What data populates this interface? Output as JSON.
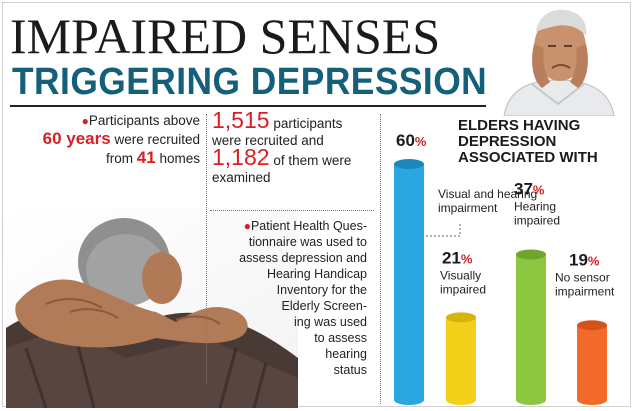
{
  "header": {
    "title": "IMPAIRED SENSES",
    "subtitle": "TRIGGERING DEPRESSION"
  },
  "facts": {
    "recruit_line_pre": "Participants above",
    "recruit_age": "60 years",
    "recruit_line_mid": "were recruited",
    "recruit_line_from": "from",
    "recruit_homes": "41",
    "recruit_line_end": "homes",
    "participants_num": "1,515",
    "participants_text_a": "participants",
    "participants_text_b": "were recruited and",
    "examined_num": "1,182",
    "examined_text_a": "of them were",
    "examined_text_b": "examined",
    "method_lines": [
      "Patient Health Ques-",
      "tionnaire was used to",
      "assess depression and",
      "Hearing Handicap",
      "Inventory for the",
      "Elderly Screen-",
      "ing was used",
      "to assess",
      "hearing",
      "status"
    ]
  },
  "chart_data": {
    "type": "bar",
    "title": "ELDERS HAVING DEPRESSION ASSOCIATED WITH",
    "categories": [
      "Visual and hearing impairment",
      "Visually impaired",
      "Hearing impaired",
      "No sensor impairment"
    ],
    "category_lines": [
      [
        "Visual and hearing",
        "impairment"
      ],
      [
        "Visually",
        "impaired"
      ],
      [
        "Hearing",
        "impaired"
      ],
      [
        "No sensor",
        "impairment"
      ]
    ],
    "values": [
      60,
      21,
      37,
      19
    ],
    "value_labels": [
      "60",
      "21",
      "37",
      "19"
    ],
    "unit": "%",
    "colors": [
      "#2aa6e0",
      "#f2d11b",
      "#8dc63f",
      "#f26a2a"
    ],
    "ylim": [
      0,
      60
    ]
  }
}
